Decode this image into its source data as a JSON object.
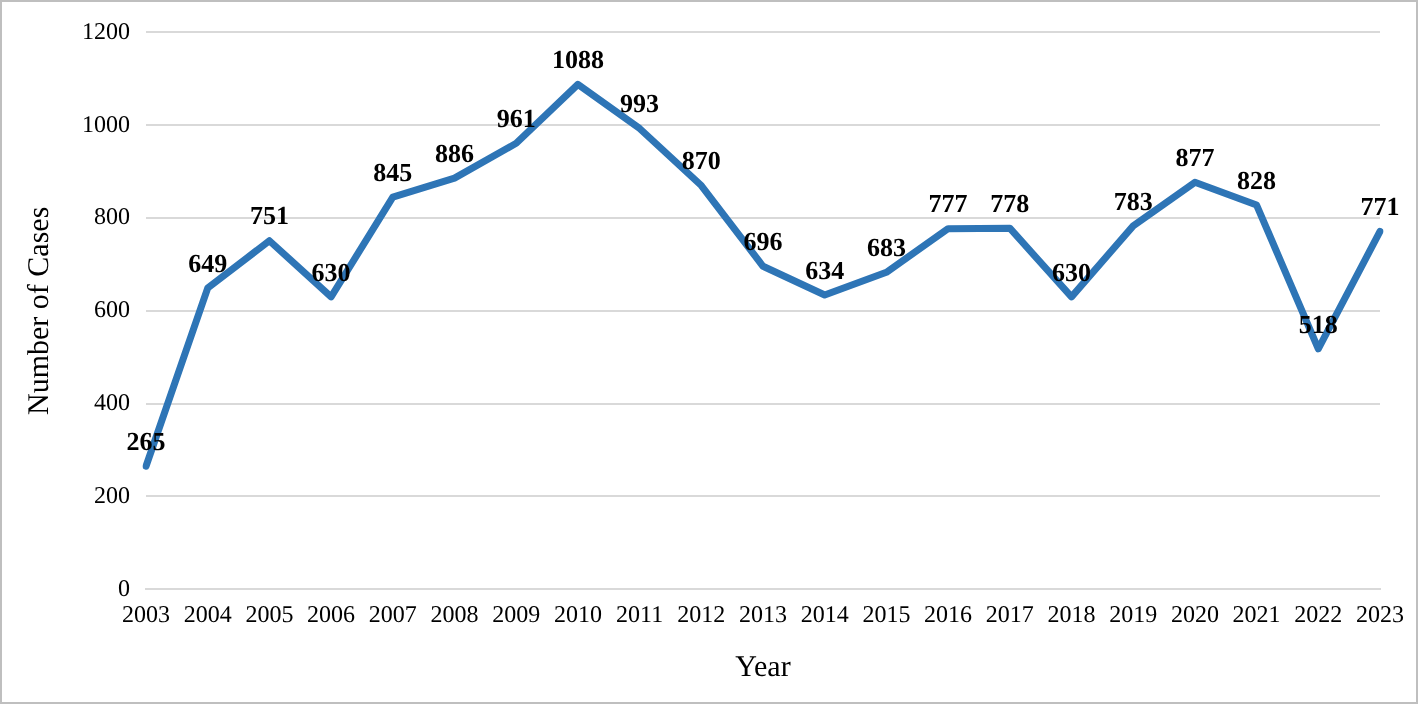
{
  "chart_data": {
    "type": "line",
    "xlabel": "Year",
    "ylabel": "Number of Cases",
    "categories": [
      "2003",
      "2004",
      "2005",
      "2006",
      "2007",
      "2008",
      "2009",
      "2010",
      "2011",
      "2012",
      "2013",
      "2014",
      "2015",
      "2016",
      "2017",
      "2018",
      "2019",
      "2020",
      "2021",
      "2022",
      "2023"
    ],
    "series": [
      {
        "color": "#2e75b6",
        "values": [
          265,
          649,
          751,
          630,
          845,
          886,
          961,
          1088,
          993,
          870,
          696,
          634,
          683,
          777,
          778,
          630,
          783,
          877,
          828,
          518,
          771
        ]
      }
    ],
    "ylim": [
      0,
      1200
    ],
    "yticks": [
      0,
      200,
      400,
      600,
      800,
      1000,
      1200
    ],
    "grid": "y",
    "legend": false,
    "marker": "none",
    "line_style": "solid",
    "data_labels": true
  }
}
